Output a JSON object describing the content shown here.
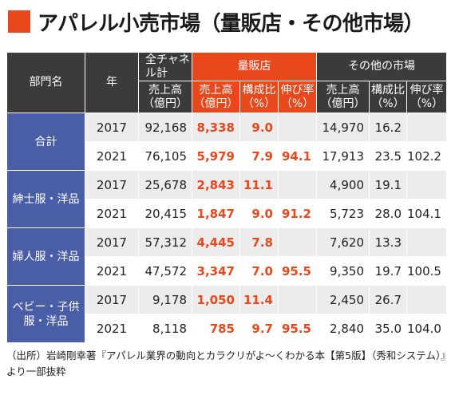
{
  "title": "アパレル小売市場（量販店・その他市場）",
  "header": {
    "dept": "部門名",
    "year": "年",
    "group_all": "全チャネル計",
    "group_mass": "量販店",
    "group_other": "その他の市場",
    "col_sales": "売上高（億円）",
    "col_share": "構成比（%）",
    "col_growth": "伸び率（%）"
  },
  "rows": [
    {
      "dept": "合計",
      "year": "2017",
      "all": "92,168",
      "m_sales": "8,338",
      "m_share": "9.0",
      "m_growth": "",
      "o_sales": "14,970",
      "o_share": "16.2",
      "o_growth": ""
    },
    {
      "dept": "",
      "year": "2021",
      "all": "76,105",
      "m_sales": "5,979",
      "m_share": "7.9",
      "m_growth": "94.1",
      "o_sales": "17,913",
      "o_share": "23.5",
      "o_growth": "102.2"
    },
    {
      "dept": "紳士服・洋品",
      "year": "2017",
      "all": "25,678",
      "m_sales": "2,843",
      "m_share": "11.1",
      "m_growth": "",
      "o_sales": "4,900",
      "o_share": "19.1",
      "o_growth": ""
    },
    {
      "dept": "",
      "year": "2021",
      "all": "20,415",
      "m_sales": "1,847",
      "m_share": "9.0",
      "m_growth": "91.2",
      "o_sales": "5,723",
      "o_share": "28.0",
      "o_growth": "104.1"
    },
    {
      "dept": "婦人服・洋品",
      "year": "2017",
      "all": "57,312",
      "m_sales": "4,445",
      "m_share": "7.8",
      "m_growth": "",
      "o_sales": "7,620",
      "o_share": "13.3",
      "o_growth": ""
    },
    {
      "dept": "",
      "year": "2021",
      "all": "47,572",
      "m_sales": "3,347",
      "m_share": "7.0",
      "m_growth": "95.5",
      "o_sales": "9,350",
      "o_share": "19.7",
      "o_growth": "100.5"
    },
    {
      "dept": "ベビー・子供服・洋品",
      "year": "2017",
      "all": "9,178",
      "m_sales": "1,050",
      "m_share": "11.4",
      "m_growth": "",
      "o_sales": "2,450",
      "o_share": "26.7",
      "o_growth": ""
    },
    {
      "dept": "",
      "year": "2021",
      "all": "8,118",
      "m_sales": "785",
      "m_share": "9.7",
      "m_growth": "95.5",
      "o_sales": "2,840",
      "o_share": "35.0",
      "o_growth": "104.0"
    }
  ],
  "source": "（出所）岩崎剛幸著『アパレル業界の動向とカラクリがよ〜くわかる本【第5版】（秀和システム）』より一部抜粋"
}
